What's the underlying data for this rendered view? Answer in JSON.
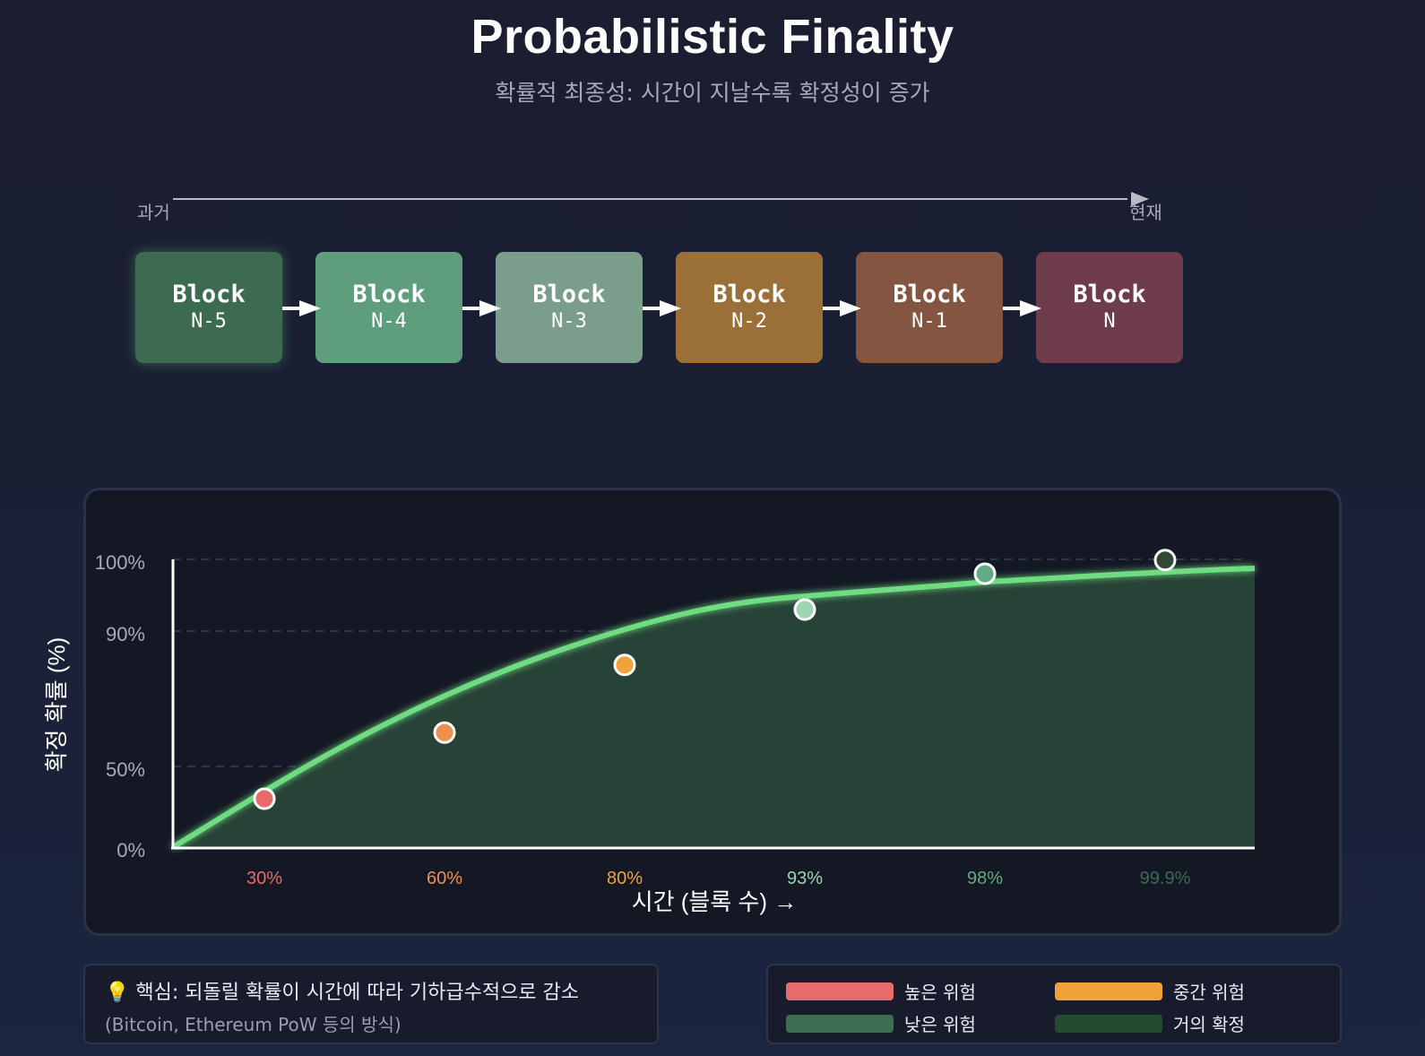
{
  "header": {
    "title": "Probabilistic Finality",
    "subtitle": "확률적 최종성: 시간이 지날수록 확정성이 증가"
  },
  "timeline": {
    "past_label": "과거",
    "present_label": "현재"
  },
  "blocks": [
    {
      "name": "Block",
      "number": "N-5",
      "color": "#3d6b4f"
    },
    {
      "name": "Block",
      "number": "N-4",
      "color": "#5f9e7c"
    },
    {
      "name": "Block",
      "number": "N-3",
      "color": "#7a9d8c"
    },
    {
      "name": "Block",
      "number": "N-2",
      "color": "#9a7038"
    },
    {
      "name": "Block",
      "number": "N-1",
      "color": "#845641"
    },
    {
      "name": "Block",
      "number": "N",
      "color": "#6e3c4a"
    }
  ],
  "chart_data": {
    "type": "line",
    "ylabel": "확정 확률 (%)",
    "xlabel": "시간 (블록 수) →",
    "y_ticks": [
      "0%",
      "50%",
      "90%",
      "100%"
    ],
    "points": [
      {
        "label": "30%",
        "value": 30,
        "color": "#e86b6b"
      },
      {
        "label": "60%",
        "value": 60,
        "color": "#ef8f4e"
      },
      {
        "label": "80%",
        "value": 80,
        "color": "#f0a33a"
      },
      {
        "label": "93%",
        "value": 93,
        "color": "#9ed4b0"
      },
      {
        "label": "98%",
        "value": 98,
        "color": "#62ab80"
      },
      {
        "label": "99.9%",
        "value": 99.9,
        "color": "#2e4a37"
      }
    ],
    "curve_color": "#6fdc82",
    "grid": true
  },
  "note": {
    "main": "💡 핵심: 되돌릴 확률이 시간에 따라 기하급수적으로 감소",
    "sub": "(Bitcoin, Ethereum PoW 등의 방식)"
  },
  "legend": [
    {
      "label": "높은 위험",
      "color": "#e86b6b"
    },
    {
      "label": "중간 위험",
      "color": "#f0a33a"
    },
    {
      "label": "낮은 위험",
      "color": "#3e6e52"
    },
    {
      "label": "거의 확정",
      "color": "#244a30"
    }
  ]
}
